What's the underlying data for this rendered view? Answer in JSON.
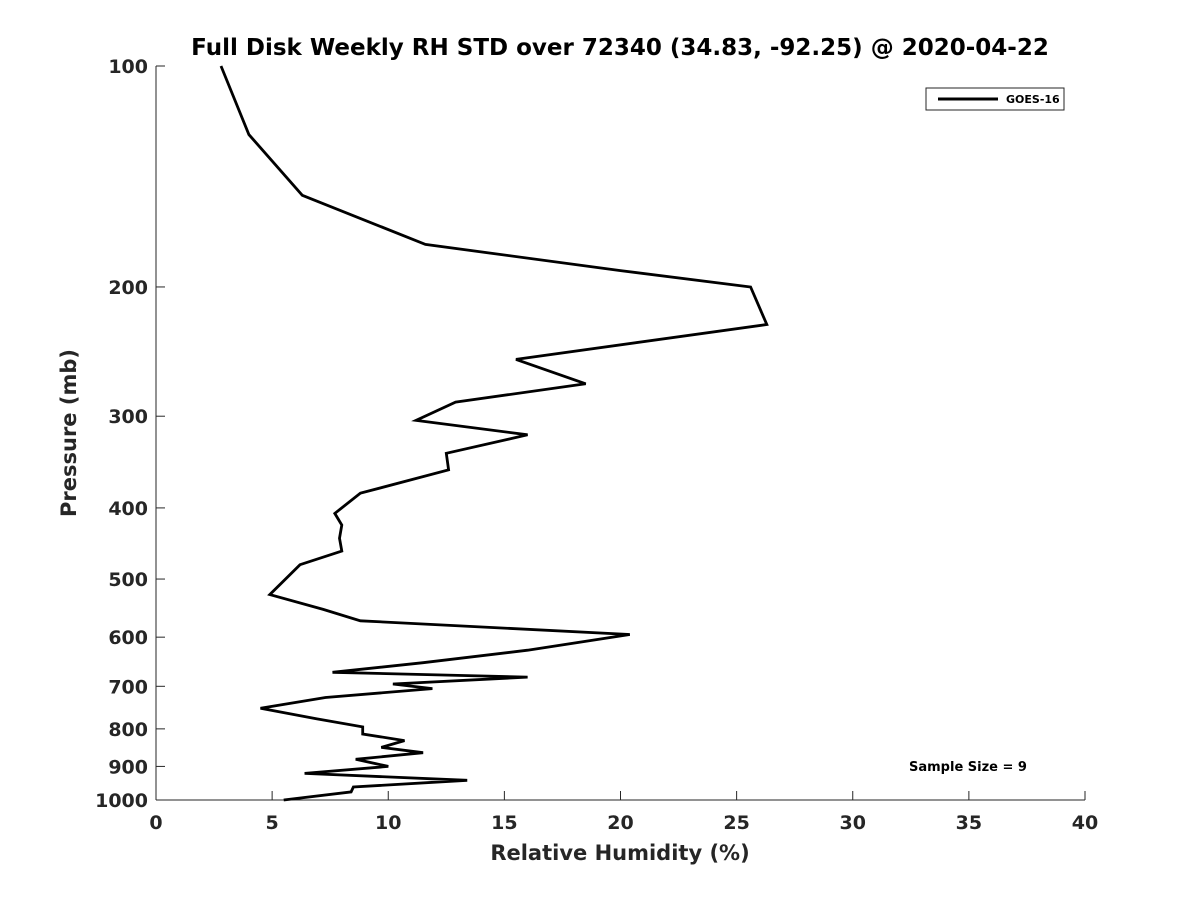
{
  "chart_data": {
    "type": "line",
    "title": "Full Disk Weekly RH STD over 72340 (34.83, -92.25) @ 2020-04-22",
    "xlabel": "Relative Humidity (%)",
    "ylabel": "Pressure (mb)",
    "xlim": [
      0,
      40
    ],
    "ylim": [
      100,
      1000
    ],
    "y_scale": "log",
    "y_reversed": true,
    "grid": false,
    "legend_position": "top-right",
    "x_ticks": [
      0,
      5,
      10,
      15,
      20,
      25,
      30,
      35,
      40
    ],
    "x_tick_labels": [
      "0",
      "5",
      "10",
      "15",
      "20",
      "25",
      "30",
      "35",
      "40"
    ],
    "y_ticks": [
      100,
      200,
      300,
      400,
      500,
      600,
      700,
      800,
      900,
      1000
    ],
    "y_tick_labels": [
      "100",
      "200",
      "300",
      "400",
      "500",
      "600",
      "700",
      "800",
      "900",
      "1000"
    ],
    "annotation": "Sample Size = 9",
    "series": [
      {
        "name": "GOES-16",
        "color": "#000000",
        "points": [
          [
            2.8,
            100
          ],
          [
            4.0,
            124
          ],
          [
            6.3,
            150
          ],
          [
            11.6,
            175
          ],
          [
            20.0,
            190
          ],
          [
            25.6,
            200
          ],
          [
            26.3,
            225
          ],
          [
            15.5,
            251
          ],
          [
            18.5,
            271
          ],
          [
            12.9,
            287
          ],
          [
            11.2,
            304
          ],
          [
            16.0,
            318
          ],
          [
            12.5,
            337
          ],
          [
            12.6,
            355
          ],
          [
            8.8,
            382
          ],
          [
            7.7,
            407
          ],
          [
            8.0,
            422
          ],
          [
            7.9,
            440
          ],
          [
            8.0,
            458
          ],
          [
            6.2,
            478
          ],
          [
            4.9,
            525
          ],
          [
            7.2,
            550
          ],
          [
            8.8,
            570
          ],
          [
            20.4,
            595
          ],
          [
            16.0,
            625
          ],
          [
            11.5,
            650
          ],
          [
            7.6,
            670
          ],
          [
            16.0,
            680
          ],
          [
            10.2,
            695
          ],
          [
            11.9,
            705
          ],
          [
            7.3,
            725
          ],
          [
            4.5,
            750
          ],
          [
            6.9,
            775
          ],
          [
            8.9,
            795
          ],
          [
            8.9,
            813
          ],
          [
            10.7,
            830
          ],
          [
            9.7,
            848
          ],
          [
            11.5,
            862
          ],
          [
            8.6,
            880
          ],
          [
            10.0,
            900
          ],
          [
            6.4,
            920
          ],
          [
            13.4,
            940
          ],
          [
            8.5,
            960
          ],
          [
            8.4,
            975
          ],
          [
            5.5,
            1000
          ]
        ]
      }
    ]
  }
}
